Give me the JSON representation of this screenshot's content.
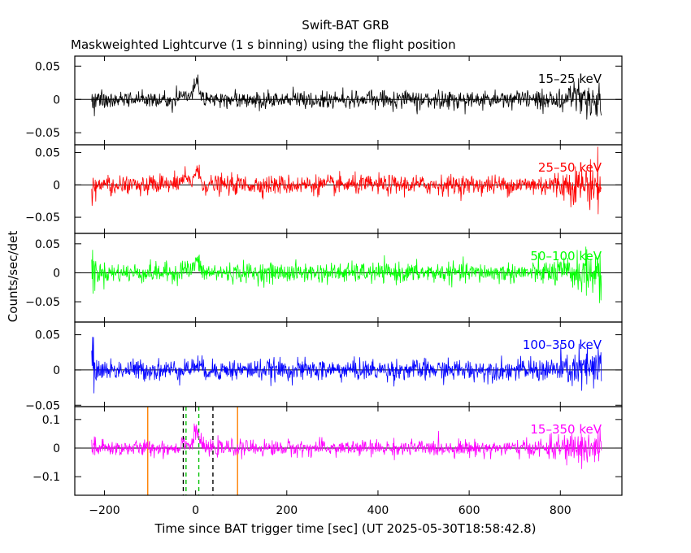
{
  "title": "Swift-BAT GRB",
  "subtitle": "Maskweighted Lightcurve (1 s binning) using the flight position",
  "chart_data": {
    "type": "line",
    "title": "Swift-BAT GRB",
    "subtitle": "Maskweighted Lightcurve (1 s binning) using the flight position",
    "xlabel": "Time since BAT trigger time [sec] (UT 2025-05-30T18:58:42.8)",
    "ylabel": "Counts/sec/det",
    "xlim": [
      -265,
      935
    ],
    "x_ticks": [
      -200,
      0,
      200,
      400,
      600,
      800
    ],
    "x_tick_labels": [
      "−200",
      "0",
      "200",
      "400",
      "600",
      "800"
    ],
    "data_x_range": [
      -228,
      890
    ],
    "panels": [
      {
        "band": "15–25 keV",
        "color": "#000000",
        "ylim": [
          -0.068,
          0.065
        ],
        "y_ticks": [
          0.05,
          0,
          -0.05
        ],
        "y_tick_labels": [
          "0.05",
          "0",
          "−0.05"
        ],
        "noise_rms": 0.0065,
        "late_noise_rms": 0.02,
        "peak": 0.025
      },
      {
        "band": "25–50 keV",
        "color": "#ff0000",
        "ylim": [
          -0.075,
          0.062
        ],
        "y_ticks": [
          0.05,
          0,
          -0.05
        ],
        "y_tick_labels": [
          "0.05",
          "0",
          "−0.05"
        ],
        "noise_rms": 0.0075,
        "late_noise_rms": 0.022,
        "peak": 0.022
      },
      {
        "band": "50–100 keV",
        "color": "#00ff00",
        "ylim": [
          -0.085,
          0.068
        ],
        "y_ticks": [
          0.05,
          0,
          -0.05
        ],
        "y_tick_labels": [
          "0.05",
          "0",
          "−0.05"
        ],
        "noise_rms": 0.0085,
        "late_noise_rms": 0.024,
        "peak": 0.02
      },
      {
        "band": "100–350 keV",
        "color": "#0000ff",
        "ylim": [
          -0.052,
          0.068
        ],
        "y_ticks": [
          0.05,
          0,
          -0.05
        ],
        "y_tick_labels": [
          "0.05",
          "0",
          "−0.05"
        ],
        "noise_rms": 0.0075,
        "late_noise_rms": 0.02,
        "peak": 0.008
      },
      {
        "band": "15–350 keV",
        "color": "#ff00ff",
        "ylim": [
          -0.165,
          0.145
        ],
        "y_ticks": [
          0.1,
          0,
          -0.1
        ],
        "y_tick_labels": [
          "0.1",
          "0",
          "−0.1"
        ],
        "noise_rms": 0.014,
        "late_noise_rms": 0.045,
        "peak": 0.06
      }
    ],
    "vertical_markers": [
      {
        "x": -105,
        "color": "#ff8000",
        "style": "solid"
      },
      {
        "x": 92,
        "color": "#ff8000",
        "style": "solid"
      },
      {
        "x": -27,
        "color": "#000000",
        "style": "dashed"
      },
      {
        "x": 38,
        "color": "#000000",
        "style": "dashed"
      },
      {
        "x": -21,
        "color": "#00c000",
        "style": "dashed"
      },
      {
        "x": 7,
        "color": "#00c000",
        "style": "dashed"
      }
    ]
  }
}
